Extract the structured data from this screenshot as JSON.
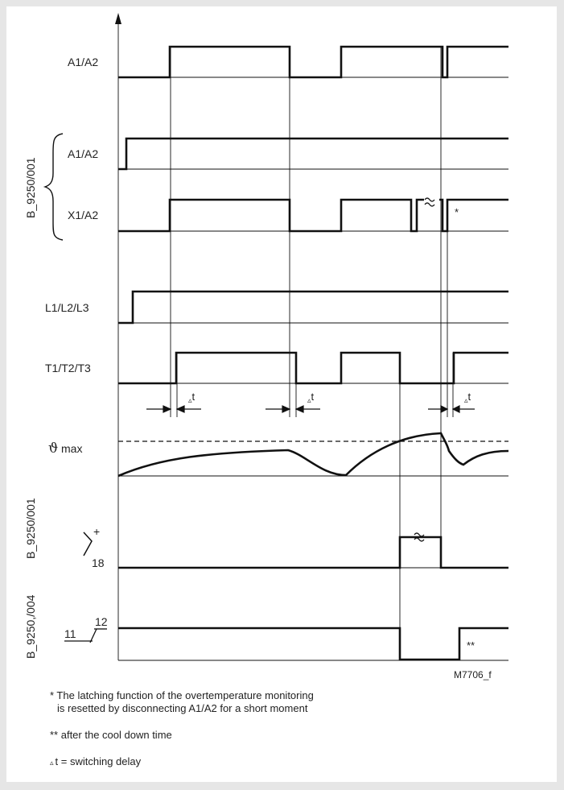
{
  "signals": {
    "a1a2_top": "A1/A2",
    "a1a2": "A1/A2",
    "x1a2": "X1/A2",
    "l1l2l3": "L1/L2/L3",
    "t1t2t3": "T1/T2/T3",
    "theta_symbol": "ϑ",
    "theta_max": "max"
  },
  "group_labels": {
    "b9250_001_top": "B_9250/001",
    "b9250_001_bottom": "B_9250/001",
    "b9250_004": "B_9250,/004"
  },
  "contacts": {
    "plus": "+",
    "n18": "18",
    "n11": "11",
    "n12": "12"
  },
  "delta": {
    "symbol": "▵",
    "t": "t"
  },
  "markers": {
    "star": "*",
    "double_star": "**",
    "wavy": "≈"
  },
  "figure_id": "M7706_f",
  "footnotes": {
    "note1_line1": "* The latching function of the overtemperature monitoring",
    "note1_line2": "is resetted by disconnecting A1/A2 for a short moment",
    "note2": "** after the cool down time",
    "note3_symbol": "▵",
    "note3_text": "t = switching delay"
  }
}
